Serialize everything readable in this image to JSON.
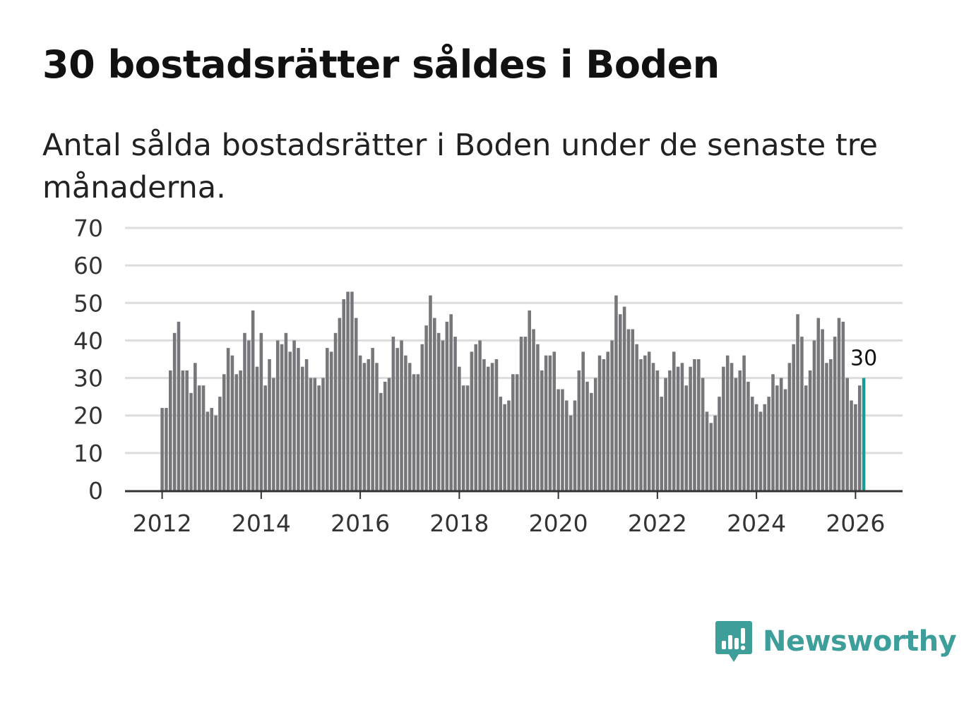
{
  "title": "30 bostadsrätter såldes i Boden",
  "subtitle": "Antal sålda bostadsrätter i Boden under de senaste tre månaderna.",
  "brand": {
    "name": "Newsworthy",
    "color": "#3d9e9a",
    "icon": "bar-chart-speech-bubble-icon"
  },
  "colors": {
    "bars": "#77767b",
    "highlight": "#1a9a95",
    "grid": "#dddddd",
    "axis": "#333333"
  },
  "chart_data": {
    "type": "bar",
    "title": "30 bostadsrätter såldes i Boden",
    "xlabel": "",
    "ylabel": "",
    "ylim": [
      0,
      70
    ],
    "xlim": [
      2011.25,
      2026.95
    ],
    "yticks": [
      "0",
      "10",
      "20",
      "30",
      "40",
      "50",
      "60",
      "70"
    ],
    "xticks": [
      "2012",
      "2014",
      "2016",
      "2018",
      "2020",
      "2022",
      "2024",
      "2026"
    ],
    "start": "2012-01",
    "frequency": "monthly",
    "end_label": "30",
    "values": [
      22,
      22,
      32,
      42,
      45,
      32,
      32,
      26,
      34,
      28,
      28,
      21,
      22,
      20,
      25,
      31,
      38,
      36,
      31,
      32,
      42,
      40,
      48,
      33,
      42,
      28,
      35,
      30,
      40,
      39,
      42,
      37,
      40,
      38,
      33,
      35,
      30,
      30,
      28,
      30,
      38,
      37,
      42,
      46,
      51,
      53,
      53,
      46,
      36,
      34,
      35,
      38,
      34,
      26,
      29,
      30,
      41,
      38,
      40,
      36,
      34,
      31,
      31,
      39,
      44,
      52,
      46,
      42,
      40,
      45,
      47,
      41,
      33,
      28,
      28,
      37,
      39,
      40,
      35,
      33,
      34,
      35,
      25,
      23,
      24,
      31,
      31,
      41,
      41,
      48,
      43,
      39,
      32,
      36,
      36,
      37,
      27,
      27,
      24,
      20,
      24,
      32,
      37,
      29,
      26,
      30,
      36,
      35,
      37,
      40,
      52,
      47,
      49,
      43,
      43,
      39,
      35,
      36,
      37,
      34,
      32,
      25,
      30,
      32,
      37,
      33,
      34,
      28,
      33,
      35,
      35,
      30,
      21,
      18,
      20,
      25,
      33,
      36,
      34,
      30,
      32,
      36,
      29,
      25,
      23,
      21,
      23,
      25,
      31,
      28,
      30,
      27,
      34,
      39,
      47,
      41,
      28,
      32,
      40,
      46,
      43,
      34,
      35,
      41,
      46,
      45,
      30,
      24,
      23,
      28,
      30
    ]
  }
}
